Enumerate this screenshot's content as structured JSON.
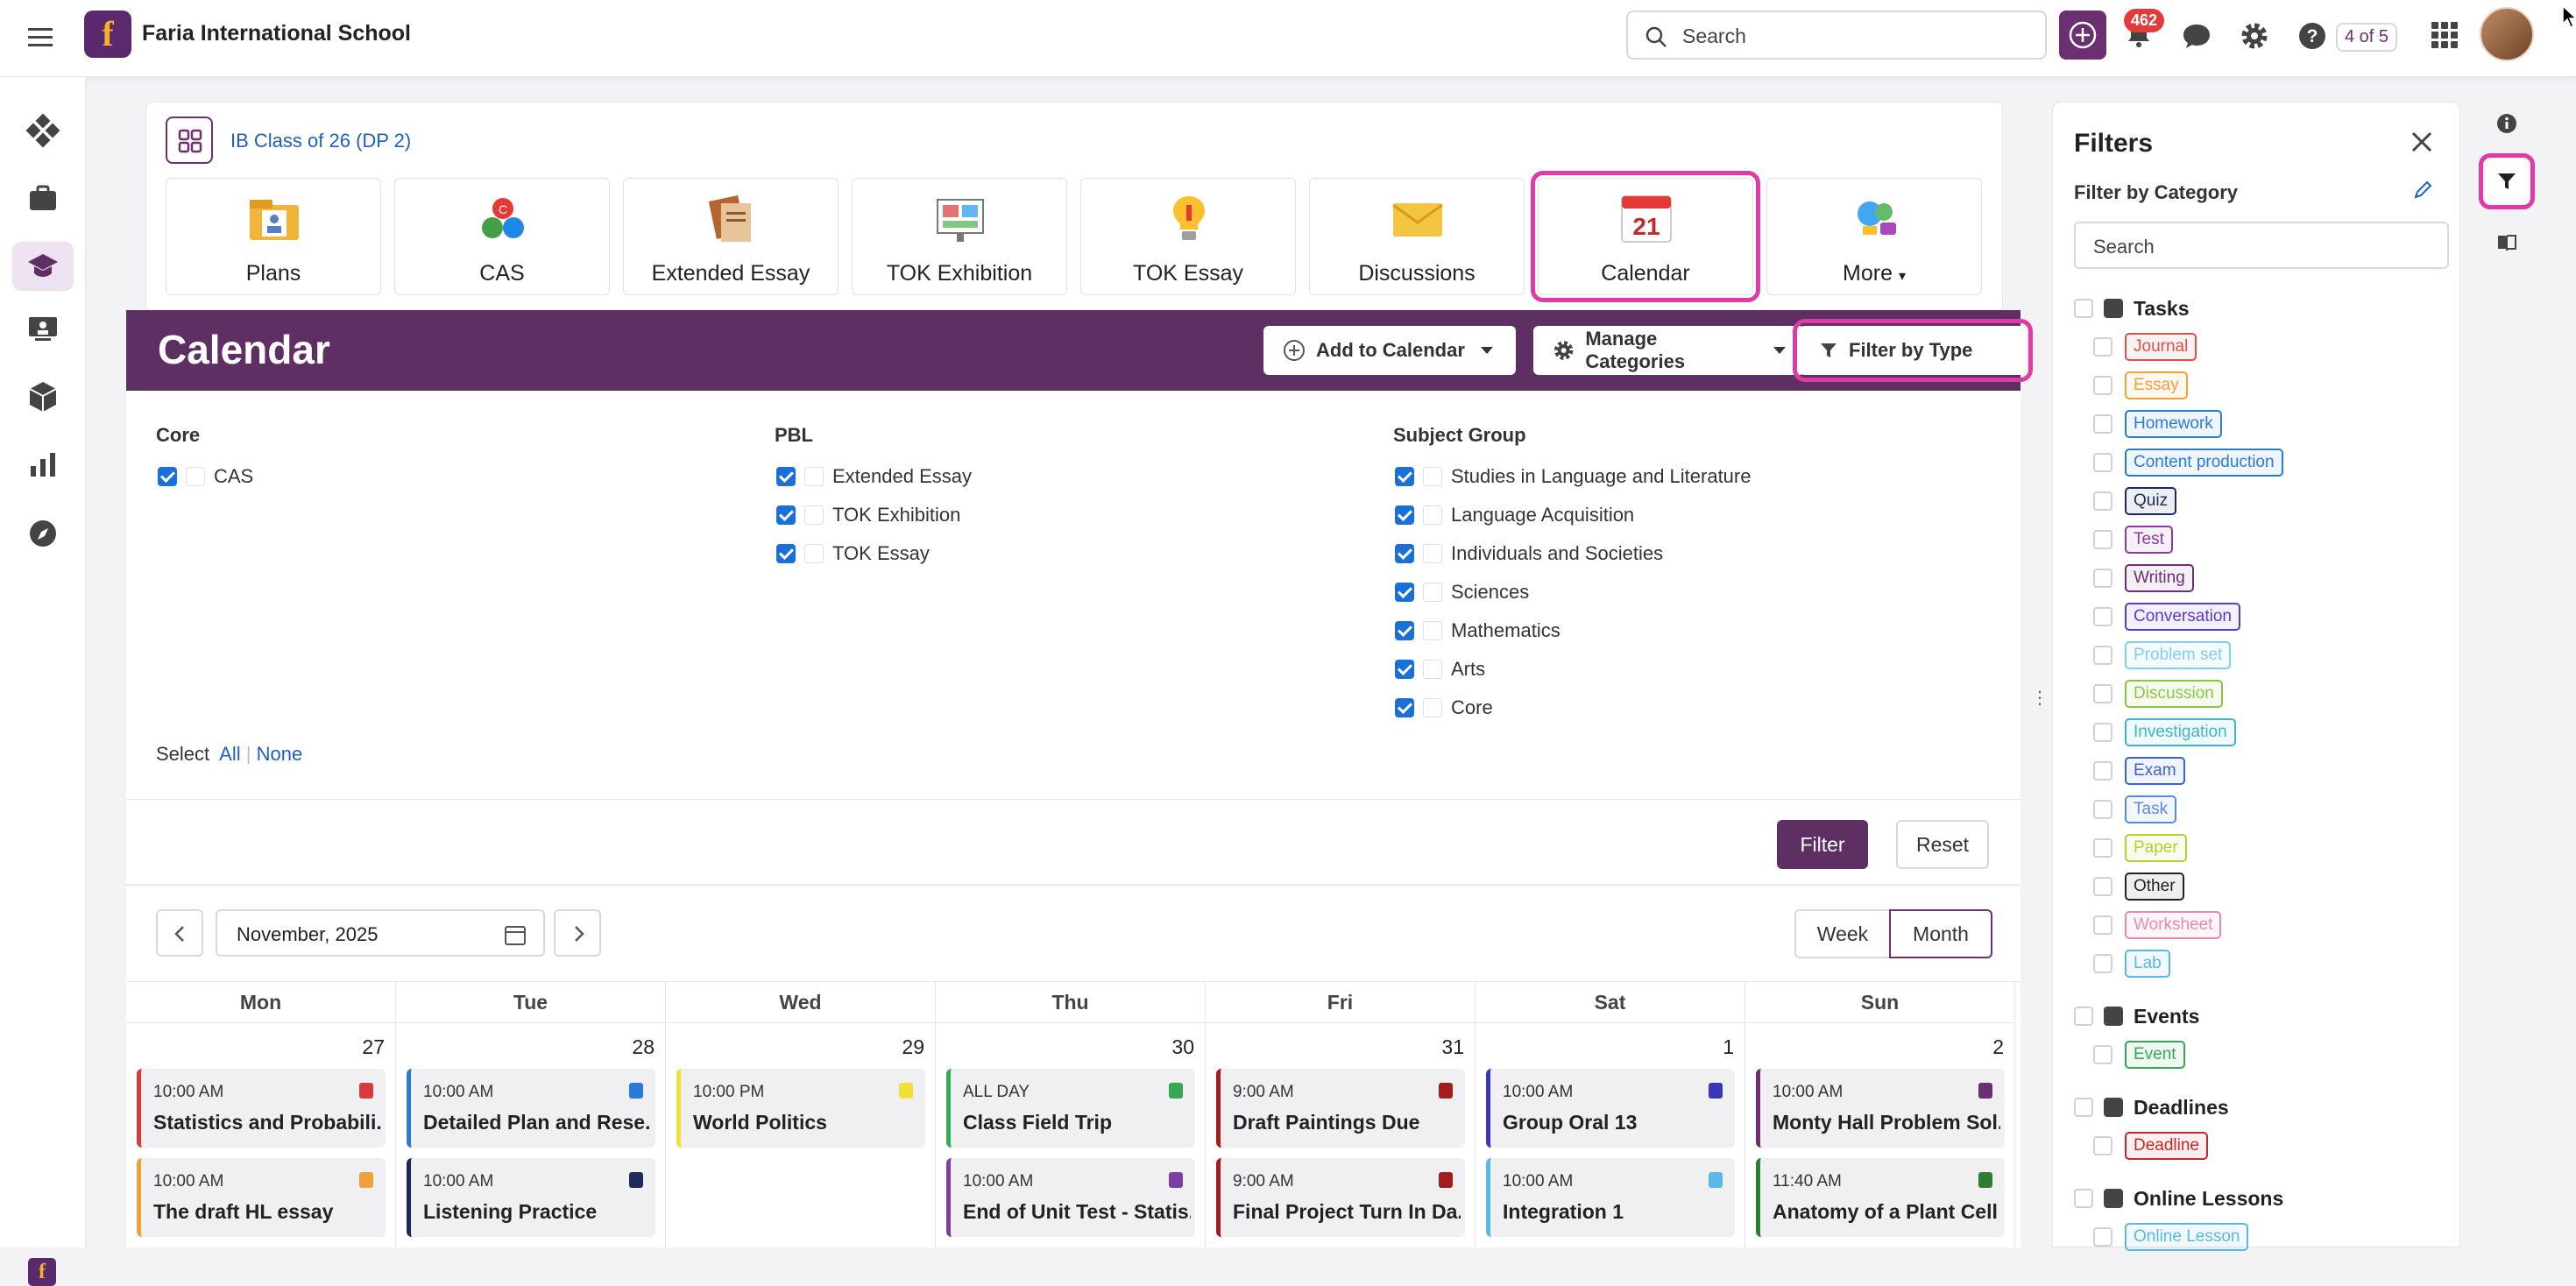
{
  "topbar": {
    "school_name": "Faria International School",
    "search_placeholder": "Search",
    "notification_count": "462",
    "pager": "4 of 5"
  },
  "class_card": {
    "class_name": "IB Class of 26 (DP 2)",
    "tiles": [
      {
        "label": "Plans",
        "icon": "plans-icon"
      },
      {
        "label": "CAS",
        "icon": "cas-icon"
      },
      {
        "label": "Extended Essay",
        "icon": "extended-essay-icon"
      },
      {
        "label": "TOK Exhibition",
        "icon": "tok-exhibition-icon"
      },
      {
        "label": "TOK Essay",
        "icon": "tok-essay-icon"
      },
      {
        "label": "Discussions",
        "icon": "discussions-icon"
      },
      {
        "label": "Calendar",
        "icon": "calendar-icon",
        "calendar_day": "21",
        "active": true
      },
      {
        "label": "More",
        "icon": "more-icon"
      }
    ]
  },
  "calendar_header": {
    "title": "Calendar",
    "add_label": "Add to Calendar",
    "manage_label": "Manage Categories",
    "filter_type_label": "Filter by Type"
  },
  "filters": {
    "core": {
      "heading": "Core",
      "items": [
        "CAS"
      ]
    },
    "pbl": {
      "heading": "PBL",
      "items": [
        "Extended Essay",
        "TOK Exhibition",
        "TOK Essay"
      ]
    },
    "subject_group": {
      "heading": "Subject Group",
      "items": [
        "Studies in Language and Literature",
        "Language Acquisition",
        "Individuals and Societies",
        "Sciences",
        "Mathematics",
        "Arts",
        "Core"
      ]
    },
    "select_label": "Select",
    "all_label": "All",
    "none_label": "None",
    "filter_btn": "Filter",
    "reset_btn": "Reset"
  },
  "calendar": {
    "month": "November, 2025",
    "week_label": "Week",
    "month_label": "Month",
    "days": [
      "Mon",
      "Tue",
      "Wed",
      "Thu",
      "Fri",
      "Sat",
      "Sun"
    ],
    "dates": [
      "27",
      "28",
      "29",
      "30",
      "31",
      "1",
      "2"
    ],
    "events": [
      [
        {
          "time": "10:00 AM",
          "name": "Statistics and Probabili...",
          "color": "#d93b3b"
        },
        {
          "time": "10:00 AM",
          "name": "The draft HL essay",
          "color": "#f0a23a"
        }
      ],
      [
        {
          "time": "10:00 AM",
          "name": "Detailed Plan and Rese...",
          "color": "#2b7bd4"
        },
        {
          "time": "10:00 AM",
          "name": "Listening Practice",
          "color": "#1d2a5c"
        }
      ],
      [
        {
          "time": "10:00 PM",
          "name": "World Politics",
          "color": "#f2df3a"
        }
      ],
      [
        {
          "time": "ALL DAY",
          "name": "Class Field Trip",
          "color": "#35a853"
        },
        {
          "time": "10:00 AM",
          "name": "End of Unit Test - Statis...",
          "color": "#7b3fa0"
        }
      ],
      [
        {
          "time": "9:00 AM",
          "name": "Draft Paintings Due",
          "color": "#a31d1d"
        },
        {
          "time": "9:00 AM",
          "name": "Final Project Turn In Da...",
          "color": "#a31d1d"
        }
      ],
      [
        {
          "time": "10:00 AM",
          "name": "Group Oral 13",
          "color": "#3a36b8"
        },
        {
          "time": "10:00 AM",
          "name": "Integration 1",
          "color": "#5ab8e6"
        }
      ],
      [
        {
          "time": "10:00 AM",
          "name": "Monty Hall Problem Sol...",
          "color": "#6b2f72"
        },
        {
          "time": "11:40 AM",
          "name": "Anatomy of a Plant Cell",
          "color": "#2e7d32"
        }
      ]
    ]
  },
  "filter_panel": {
    "title": "Filters",
    "category_label": "Filter by Category",
    "search_placeholder": "Search",
    "groups": [
      {
        "name": "Tasks",
        "icon": "clipboard-icon",
        "items": [
          {
            "label": "Journal",
            "color": "#e0504a"
          },
          {
            "label": "Essay",
            "color": "#f0a23a"
          },
          {
            "label": "Homework",
            "color": "#2b7bd4"
          },
          {
            "label": "Content production",
            "color": "#2b7bd4"
          },
          {
            "label": "Quiz",
            "color": "#1d2a5c"
          },
          {
            "label": "Test",
            "color": "#8a3aa0"
          },
          {
            "label": "Writing",
            "color": "#6b2f72"
          },
          {
            "label": "Conversation",
            "color": "#5a3ad0"
          },
          {
            "label": "Problem set",
            "color": "#7fd0ea"
          },
          {
            "label": "Discussion",
            "color": "#8cc63f"
          },
          {
            "label": "Investigation",
            "color": "#3ab8c8"
          },
          {
            "label": "Exam",
            "color": "#3a64c8"
          },
          {
            "label": "Task",
            "color": "#5a8ae0"
          },
          {
            "label": "Paper",
            "color": "#b8d02a"
          },
          {
            "label": "Other",
            "color": "#222222"
          },
          {
            "label": "Worksheet",
            "color": "#e88ab0"
          },
          {
            "label": "Lab",
            "color": "#5ab8e6"
          }
        ]
      },
      {
        "name": "Events",
        "icon": "calendar-small-icon",
        "items": [
          {
            "label": "Event",
            "color": "#35a853"
          }
        ]
      },
      {
        "name": "Deadlines",
        "icon": "alarm-icon",
        "items": [
          {
            "label": "Deadline",
            "color": "#c42828"
          }
        ]
      },
      {
        "name": "Online Lessons",
        "icon": "bell-icon",
        "items": [
          {
            "label": "Online Lesson",
            "color": "#5ab8e6"
          }
        ]
      }
    ]
  }
}
